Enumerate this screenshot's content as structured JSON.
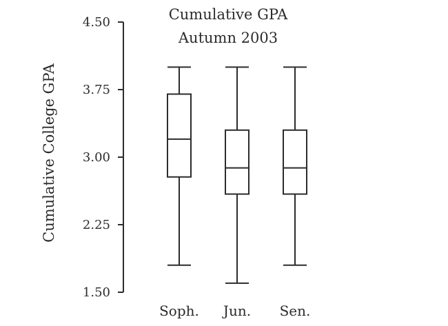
{
  "chart_data": {
    "type": "boxplot",
    "title": "Cumulative GPA",
    "subtitle": "Autumn 2003",
    "ylabel": "Cumulative College GPA",
    "xlabel": "",
    "ylim": [
      1.5,
      4.5
    ],
    "yticks": [
      "1.50",
      "2.25",
      "3.00",
      "3.75",
      "4.50"
    ],
    "categories": [
      "Soph.",
      "Jun.",
      "Sen."
    ],
    "grid": false,
    "boxes": [
      {
        "category": "Soph.",
        "min": 1.8,
        "q1": 2.78,
        "median": 3.2,
        "q3": 3.7,
        "max": 4.0
      },
      {
        "category": "Jun.",
        "min": 1.6,
        "q1": 2.59,
        "median": 2.88,
        "q3": 3.3,
        "max": 4.0
      },
      {
        "category": "Sen.",
        "min": 1.8,
        "q1": 2.59,
        "median": 2.88,
        "q3": 3.3,
        "max": 4.0
      }
    ]
  }
}
